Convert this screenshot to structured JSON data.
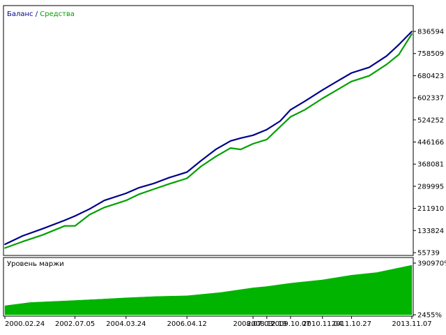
{
  "chart_data": [
    {
      "type": "line",
      "legend_placement": "top-left",
      "legend": {
        "balance_label": "Баланс",
        "separator": " / ",
        "equity_label": "Средства"
      },
      "colors": {
        "balance": "#00008b",
        "equity": "#00a000"
      },
      "ylim": [
        55739,
        836594
      ],
      "y_ticks": [
        "836594",
        "758509",
        "680423",
        "602337",
        "524252",
        "446166",
        "368081",
        "289995",
        "211910",
        "133824",
        "55739"
      ],
      "grid": false,
      "series": [
        {
          "name": "Баланс",
          "x": [
            "2000-02-24",
            "2000-10-01",
            "2001-06-01",
            "2002-03-01",
            "2002-07-05",
            "2003-01-01",
            "2003-07-01",
            "2004-03-24",
            "2004-09-01",
            "2005-03-01",
            "2005-09-01",
            "2006-04-12",
            "2006-10-01",
            "2007-04-01",
            "2007-10-01",
            "2008-02-01",
            "2008-07-03",
            "2008-12-19",
            "2009-06-01",
            "2009-10-07",
            "2010-04-01",
            "2010-11-04",
            "2011-05-01",
            "2011-10-27",
            "2012-06-01",
            "2013-01-01",
            "2013-06-01",
            "2013-11-07"
          ],
          "values": [
            85000,
            115000,
            140000,
            170000,
            185000,
            210000,
            240000,
            265000,
            285000,
            300000,
            320000,
            340000,
            380000,
            420000,
            450000,
            460000,
            470000,
            490000,
            520000,
            560000,
            590000,
            630000,
            660000,
            690000,
            710000,
            750000,
            790000,
            836594
          ]
        },
        {
          "name": "Средства",
          "x": [
            "2000-02-24",
            "2000-10-01",
            "2001-06-01",
            "2002-03-01",
            "2002-07-05",
            "2003-01-01",
            "2003-07-01",
            "2004-03-24",
            "2004-09-01",
            "2005-03-01",
            "2005-09-01",
            "2006-04-12",
            "2006-10-01",
            "2007-04-01",
            "2007-10-01",
            "2008-02-01",
            "2008-07-03",
            "2008-12-19",
            "2009-06-01",
            "2009-10-07",
            "2010-04-01",
            "2010-11-04",
            "2011-05-01",
            "2011-10-27",
            "2012-06-01",
            "2013-01-01",
            "2013-06-01",
            "2013-11-07"
          ],
          "values": [
            72000,
            95000,
            118000,
            150000,
            150000,
            190000,
            215000,
            240000,
            262000,
            280000,
            298000,
            318000,
            360000,
            395000,
            425000,
            420000,
            440000,
            455000,
            500000,
            535000,
            560000,
            600000,
            630000,
            660000,
            680000,
            720000,
            755000,
            828000
          ]
        }
      ]
    },
    {
      "type": "area",
      "title": "Уровень маржи",
      "color": "#00b400",
      "ylim": [
        2455,
        390970
      ],
      "y_ticks": [
        "390970%",
        "2455%"
      ],
      "x_ticks": [
        "2000.02.24",
        "2002.07.05",
        "2004.03.24",
        "2006.04.12",
        "2008.07.03",
        "2008.12.19",
        "2009.10.07",
        "2010.11.04",
        "2011.10.27",
        "2013.11.07"
      ],
      "series": [
        {
          "name": "Уровень маржи",
          "x": [
            "2000-02-24",
            "2001-01-01",
            "2002-07-05",
            "2003-06-01",
            "2004-03-24",
            "2005-04-01",
            "2006-04-12",
            "2007-06-01",
            "2008-07-03",
            "2008-12-19",
            "2009-10-07",
            "2010-11-04",
            "2011-10-27",
            "2012-09-01",
            "2013-11-07"
          ],
          "values": [
            70000,
            95000,
            110000,
            120000,
            130000,
            140000,
            145000,
            170000,
            205000,
            215000,
            240000,
            265000,
            300000,
            320000,
            375000
          ]
        }
      ]
    }
  ]
}
